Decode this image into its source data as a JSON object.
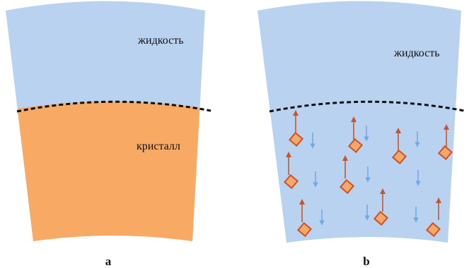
{
  "panels": [
    {
      "id": "a",
      "label": "a",
      "regions": {
        "liquid_label": "жидкость",
        "crystal_label": "кристалл"
      }
    },
    {
      "id": "b",
      "label": "b",
      "regions": {
        "liquid_label": "жидкость"
      }
    }
  ],
  "colors": {
    "liquid": "#b9d2ef",
    "crystal": "#f8a963",
    "interface_line": "#111111",
    "particle_fill": "#f6a768",
    "particle_stroke": "#c9542a",
    "up_arrow": "#c9542a",
    "down_arrow": "#6fa8e6"
  },
  "icons": {
    "particle": "crystal-nucleus-icon",
    "rise": "up-arrow-icon",
    "sink": "down-arrow-icon"
  }
}
